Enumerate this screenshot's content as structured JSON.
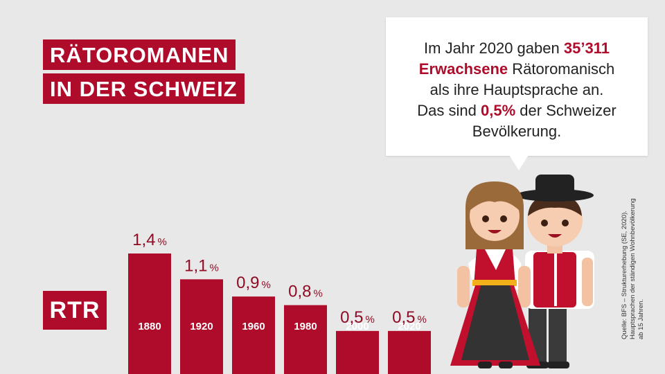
{
  "title": {
    "line1": "RÄTOROMANEN",
    "line2": "IN DER SCHWEIZ"
  },
  "bubble": {
    "part1": "Im Jahr 2020 gaben ",
    "highlight1": "35’311",
    "highlight2": "Erwachsene",
    "part2": " Rätoromanisch",
    "line3": "als ihre Hauptsprache an.",
    "part4": "Das sind ",
    "highlight3": "0,5%",
    "part5": " der Schweizer",
    "line5": "Bevölkerung."
  },
  "logo": "RTR",
  "source": {
    "line1": "Quelle: BFS – Strukturerhebung (SE, 2020).",
    "line2": "Hauptsprachen der ständigen Wohnbevölkerung",
    "line3": "ab 15 Jahren."
  },
  "chart_data": {
    "type": "bar",
    "categories": [
      "1880",
      "1920",
      "1960",
      "1980",
      "2000",
      "2020"
    ],
    "values": [
      1.4,
      1.1,
      0.9,
      0.8,
      0.5,
      0.5
    ],
    "value_labels": [
      "1,4",
      "1,1",
      "0,9",
      "0,8",
      "0,5",
      "0,5"
    ],
    "unit": "%",
    "bar_color": "#af0c2b",
    "label_color": "#8e0b24",
    "grid": false,
    "legend": "none"
  },
  "colors": {
    "accent": "#af0c2b",
    "background": "#e9e8e8"
  },
  "illustration": {
    "icon": "swiss-couple-traditional-costume-illustration"
  }
}
